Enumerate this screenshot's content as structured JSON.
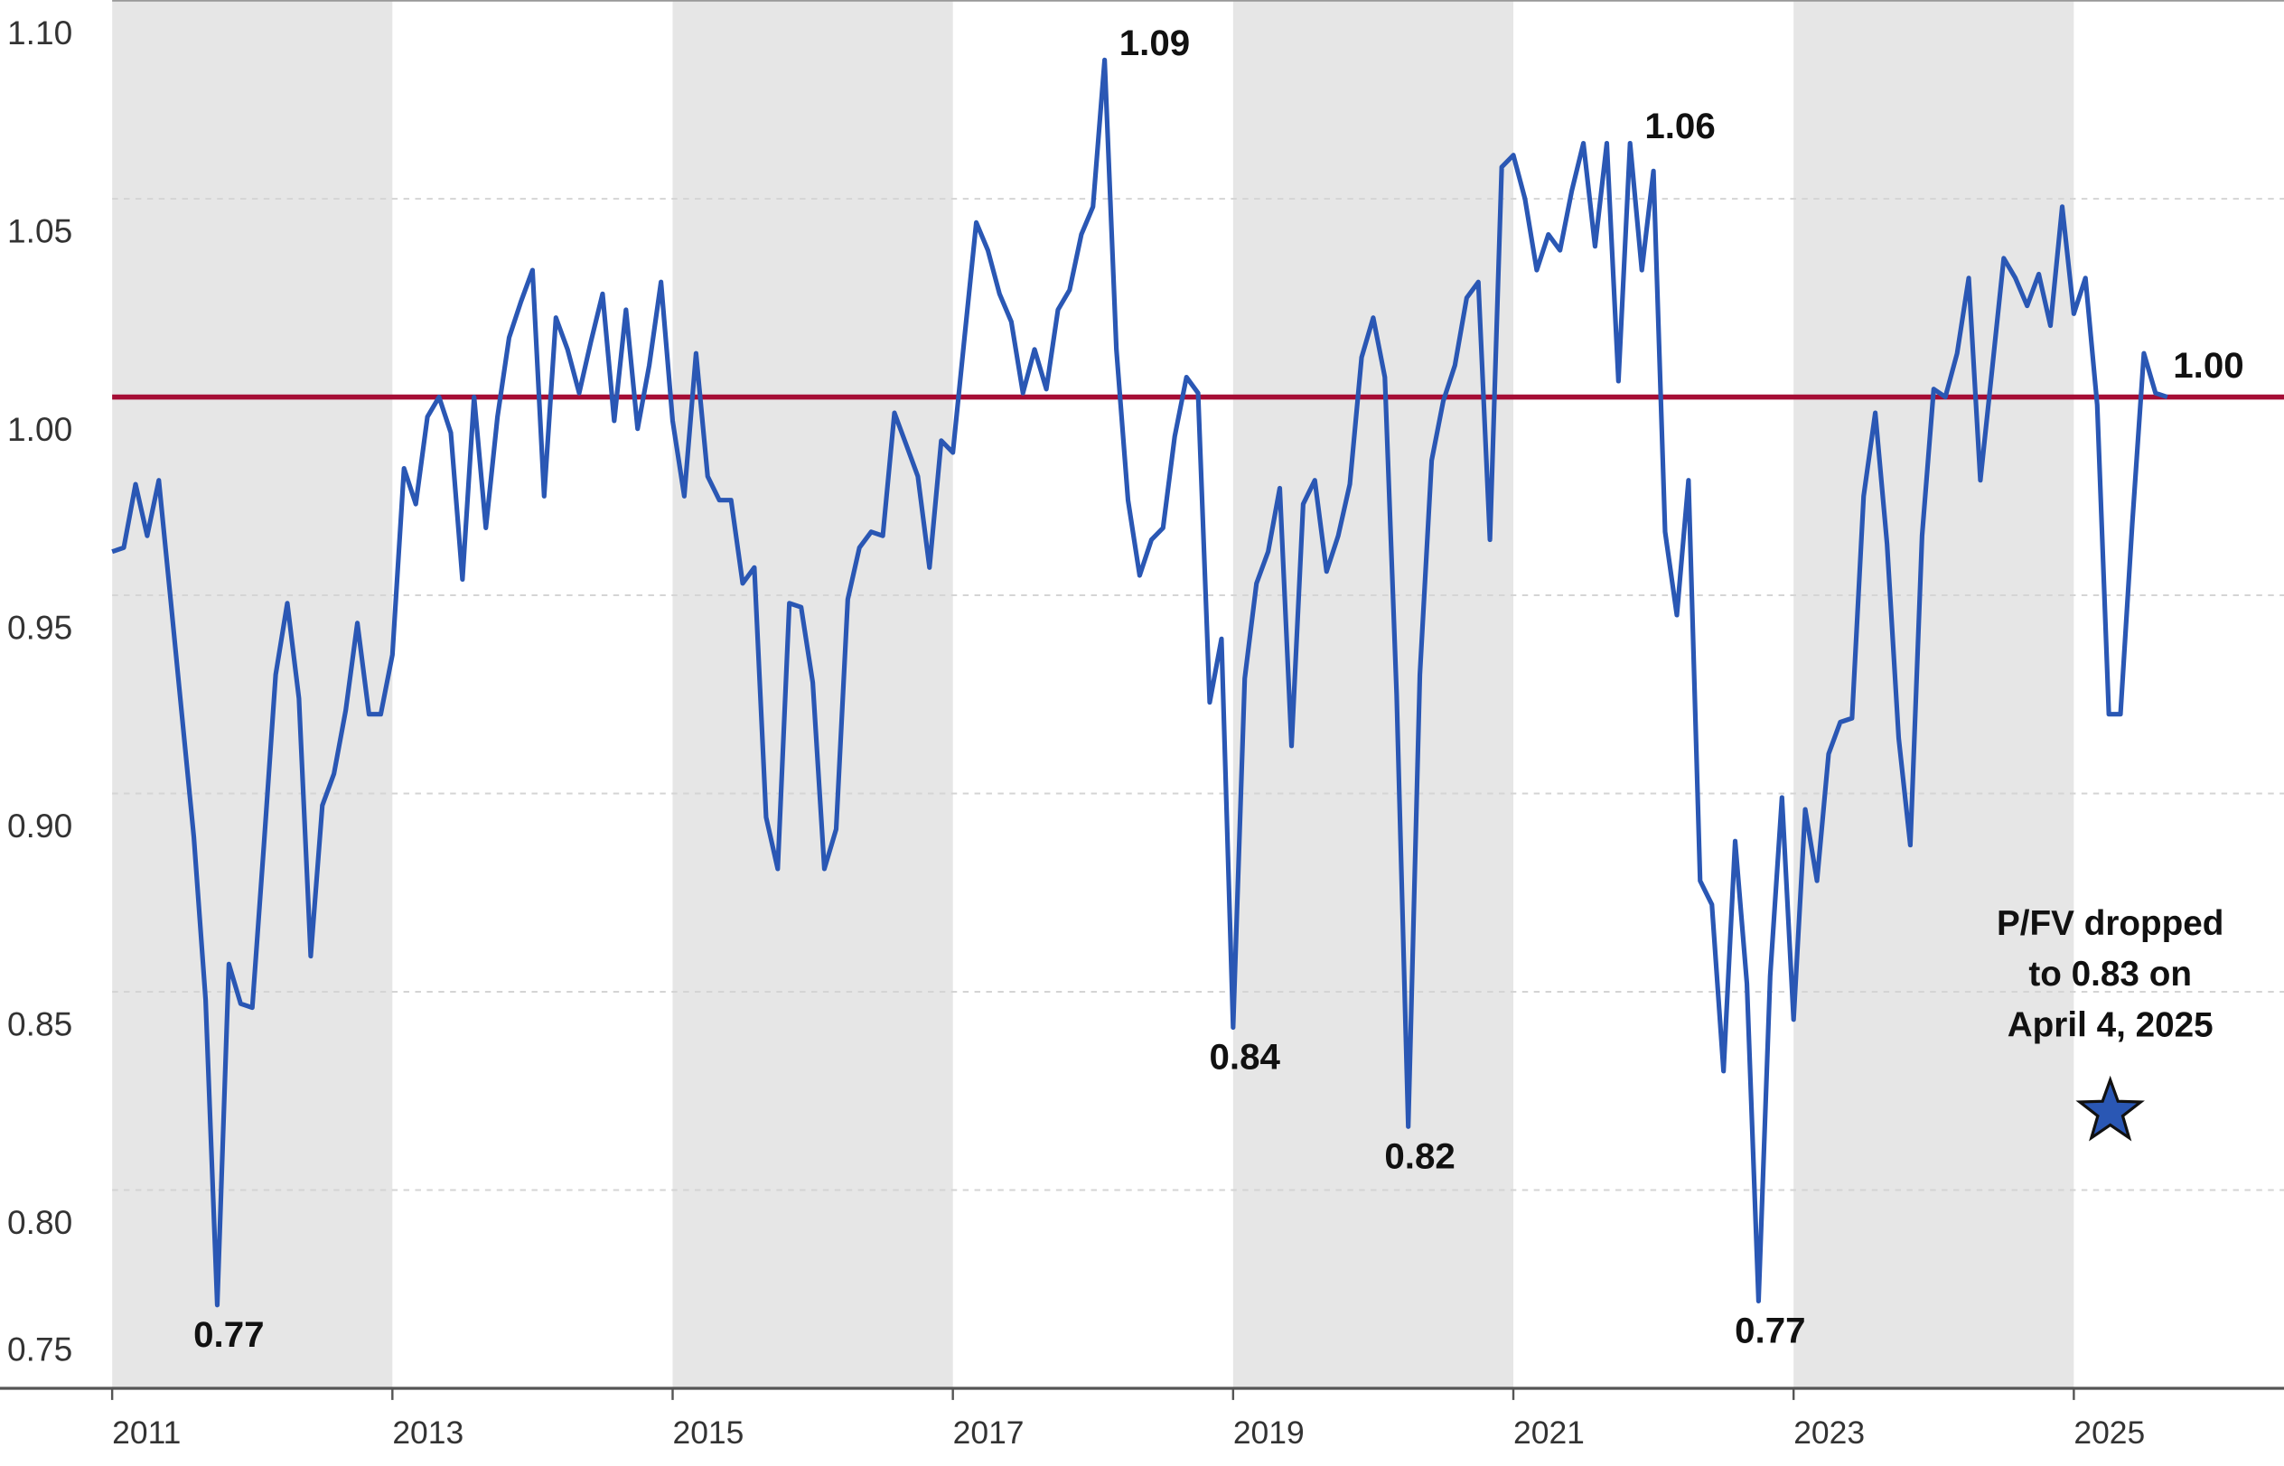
{
  "chart_data": {
    "type": "line",
    "xlim": [
      2011,
      2026.5
    ],
    "xticks": [
      2011,
      2013,
      2015,
      2017,
      2019,
      2021,
      2023,
      2025
    ],
    "ylim": [
      0.75,
      1.1
    ],
    "yticks": [
      {
        "value": 1.1,
        "label": "1.10"
      },
      {
        "value": 1.05,
        "label": "1.05"
      },
      {
        "value": 1.0,
        "label": "1.00"
      },
      {
        "value": 0.95,
        "label": "0.95"
      },
      {
        "value": 0.9,
        "label": "0.90"
      },
      {
        "value": 0.85,
        "label": "0.85"
      },
      {
        "value": 0.8,
        "label": "0.80"
      },
      {
        "value": 0.75,
        "label": "0.75"
      }
    ],
    "grid": true,
    "band_color": "#e6e6e6",
    "reference_line": {
      "value": 1.0,
      "color": "#a50d35"
    },
    "series": [
      {
        "color": "#2a57b4",
        "x": [
          2011,
          2011.083,
          2011.167,
          2011.25,
          2011.333,
          2011.417,
          2011.5,
          2011.583,
          2011.667,
          2011.75,
          2011.833,
          2011.917,
          2012,
          2012.083,
          2012.167,
          2012.25,
          2012.333,
          2012.417,
          2012.5,
          2012.583,
          2012.667,
          2012.75,
          2012.833,
          2012.917,
          2013,
          2013.083,
          2013.167,
          2013.25,
          2013.333,
          2013.417,
          2013.5,
          2013.583,
          2013.667,
          2013.75,
          2013.833,
          2013.917,
          2014,
          2014.083,
          2014.167,
          2014.25,
          2014.333,
          2014.417,
          2014.5,
          2014.583,
          2014.667,
          2014.75,
          2014.833,
          2014.917,
          2015,
          2015.083,
          2015.167,
          2015.25,
          2015.333,
          2015.417,
          2015.5,
          2015.583,
          2015.667,
          2015.75,
          2015.833,
          2015.917,
          2016,
          2016.083,
          2016.167,
          2016.25,
          2016.333,
          2016.417,
          2016.5,
          2016.583,
          2016.667,
          2016.75,
          2016.833,
          2016.917,
          2017,
          2017.083,
          2017.167,
          2017.25,
          2017.333,
          2017.417,
          2017.5,
          2017.583,
          2017.667,
          2017.75,
          2017.833,
          2017.917,
          2018,
          2018.083,
          2018.167,
          2018.25,
          2018.333,
          2018.417,
          2018.5,
          2018.583,
          2018.667,
          2018.75,
          2018.833,
          2018.917,
          2019,
          2019.083,
          2019.167,
          2019.25,
          2019.333,
          2019.417,
          2019.5,
          2019.583,
          2019.667,
          2019.75,
          2019.833,
          2019.917,
          2020,
          2020.083,
          2020.167,
          2020.25,
          2020.333,
          2020.417,
          2020.5,
          2020.583,
          2020.667,
          2020.75,
          2020.833,
          2020.917,
          2021,
          2021.083,
          2021.167,
          2021.25,
          2021.333,
          2021.417,
          2021.5,
          2021.583,
          2021.667,
          2021.75,
          2021.833,
          2021.917,
          2022,
          2022.083,
          2022.167,
          2022.25,
          2022.333,
          2022.417,
          2022.5,
          2022.583,
          2022.667,
          2022.75,
          2022.833,
          2022.917,
          2023,
          2023.083,
          2023.167,
          2023.25,
          2023.333,
          2023.417,
          2023.5,
          2023.583,
          2023.667,
          2023.75,
          2023.833,
          2023.917,
          2024,
          2024.083,
          2024.167,
          2024.25,
          2024.333,
          2024.417,
          2024.5,
          2024.583,
          2024.667,
          2024.75,
          2024.833,
          2024.917,
          2025,
          2025.083,
          2025.167,
          2025.25,
          2025.333,
          2025.417,
          2025.5,
          2025.583,
          2025.667
        ],
        "values": [
          0.961,
          0.962,
          0.978,
          0.965,
          0.979,
          0.949,
          0.919,
          0.889,
          0.848,
          0.771,
          0.857,
          0.847,
          0.846,
          0.887,
          0.93,
          0.948,
          0.924,
          0.859,
          0.897,
          0.905,
          0.921,
          0.943,
          0.92,
          0.92,
          0.935,
          0.982,
          0.973,
          0.995,
          1.0,
          0.991,
          0.954,
          1.0,
          0.967,
          0.995,
          1.015,
          1.024,
          1.032,
          0.975,
          1.02,
          1.012,
          1.001,
          1.014,
          1.026,
          0.994,
          1.022,
          0.992,
          1.008,
          1.029,
          0.994,
          0.975,
          1.011,
          0.98,
          0.974,
          0.974,
          0.953,
          0.957,
          0.894,
          0.881,
          0.948,
          0.947,
          0.928,
          0.881,
          0.891,
          0.949,
          0.962,
          0.966,
          0.965,
          0.996,
          0.988,
          0.98,
          0.957,
          0.989,
          0.986,
          1.015,
          1.044,
          1.037,
          1.026,
          1.019,
          1.001,
          1.012,
          1.002,
          1.022,
          1.027,
          1.041,
          1.048,
          1.085,
          1.012,
          0.974,
          0.955,
          0.964,
          0.967,
          0.99,
          1.005,
          1.001,
          0.923,
          0.939,
          0.841,
          0.929,
          0.953,
          0.961,
          0.977,
          0.912,
          0.973,
          0.979,
          0.956,
          0.965,
          0.978,
          1.01,
          1.02,
          1.005,
          0.925,
          0.816,
          0.93,
          0.984,
          0.999,
          1.008,
          1.025,
          1.029,
          0.964,
          1.058,
          1.061,
          1.05,
          1.032,
          1.041,
          1.037,
          1.052,
          1.064,
          1.038,
          1.064,
          1.004,
          1.064,
          1.032,
          1.057,
          0.966,
          0.945,
          0.979,
          0.878,
          0.872,
          0.83,
          0.888,
          0.852,
          0.772,
          0.854,
          0.899,
          0.843,
          0.896,
          0.878,
          0.91,
          0.918,
          0.919,
          0.975,
          0.996,
          0.963,
          0.914,
          0.887,
          0.965,
          1.002,
          1.0,
          1.011,
          1.03,
          0.979,
          1.007,
          1.035,
          1.03,
          1.023,
          1.031,
          1.018,
          1.048,
          1.021,
          1.03,
          0.998,
          0.92,
          0.92,
          0.968,
          1.011,
          1.001,
          1.0
        ],
        "value_labels": [
          null,
          null,
          null,
          null,
          null,
          null,
          null,
          null,
          null,
          "0.77",
          null,
          null,
          null,
          null,
          null,
          null,
          null,
          null,
          null,
          null,
          null,
          null,
          null,
          null,
          null,
          null,
          null,
          null,
          null,
          null,
          null,
          null,
          null,
          null,
          null,
          null,
          null,
          null,
          null,
          null,
          null,
          null,
          null,
          null,
          null,
          null,
          null,
          null,
          null,
          null,
          null,
          null,
          null,
          null,
          null,
          null,
          null,
          null,
          null,
          null,
          null,
          null,
          null,
          null,
          null,
          null,
          null,
          null,
          null,
          null,
          null,
          null,
          null,
          null,
          null,
          null,
          null,
          null,
          null,
          null,
          null,
          null,
          null,
          null,
          null,
          "1.09",
          null,
          null,
          null,
          null,
          null,
          null,
          null,
          null,
          null,
          null,
          "0.84",
          null,
          null,
          null,
          null,
          null,
          null,
          null,
          null,
          null,
          null,
          null,
          null,
          null,
          null,
          "0.82",
          null,
          null,
          null,
          null,
          null,
          null,
          null,
          null,
          null,
          null,
          null,
          null,
          null,
          null,
          null,
          null,
          null,
          null,
          "1.06",
          null,
          null,
          null,
          null,
          null,
          null,
          null,
          null,
          null,
          null,
          "0.77",
          null,
          null,
          null,
          null,
          null,
          null,
          null,
          null,
          null,
          null,
          null,
          null,
          null,
          null,
          null,
          null,
          null,
          null,
          null,
          null,
          null,
          null,
          null,
          null,
          null,
          null,
          null,
          null,
          null,
          null,
          null,
          null,
          null,
          null,
          "1.00"
        ]
      }
    ],
    "annotation": {
      "lines": [
        "P/FV dropped",
        "to 0.83 on",
        "April 4, 2025"
      ],
      "x": 2025.26,
      "value": 0.83,
      "color": "#2a57b4"
    }
  }
}
